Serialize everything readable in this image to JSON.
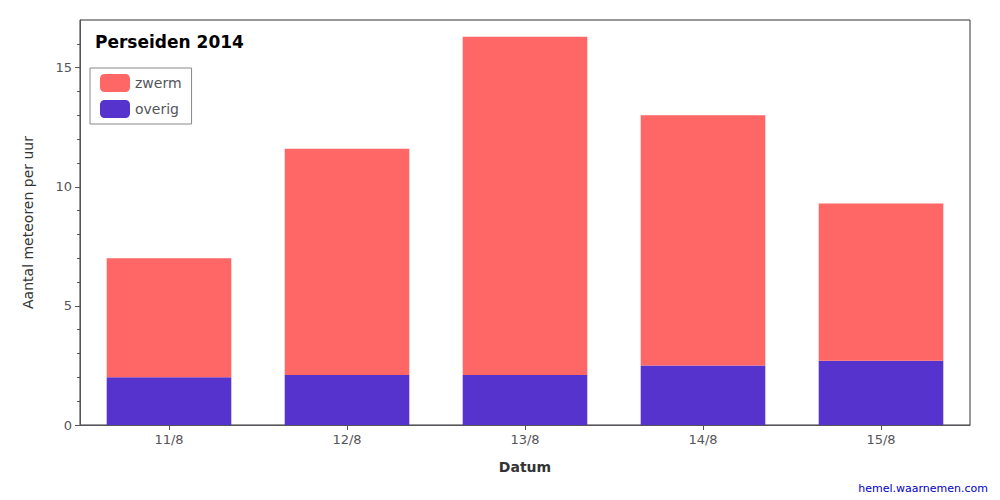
{
  "chart_data": {
    "type": "bar",
    "stacked": true,
    "title": "Perseiden 2014",
    "xlabel": "Datum",
    "ylabel": "Aantal meteoren per uur",
    "categories": [
      "11/8",
      "12/8",
      "13/8",
      "14/8",
      "15/8"
    ],
    "series": [
      {
        "name": "overig",
        "color": "#5533CC",
        "values": [
          2.0,
          2.1,
          2.1,
          2.5,
          2.7
        ]
      },
      {
        "name": "zwerm",
        "color": "#FF6666",
        "values": [
          5.0,
          9.5,
          14.2,
          10.5,
          6.6
        ]
      }
    ],
    "ylim": [
      0,
      17
    ],
    "yticks": [
      0,
      5,
      10,
      15
    ],
    "grid": false,
    "legend": "upper left",
    "annotations": [
      {
        "text": "hemel.waarnemen.com",
        "color": "#0000CC"
      }
    ]
  }
}
